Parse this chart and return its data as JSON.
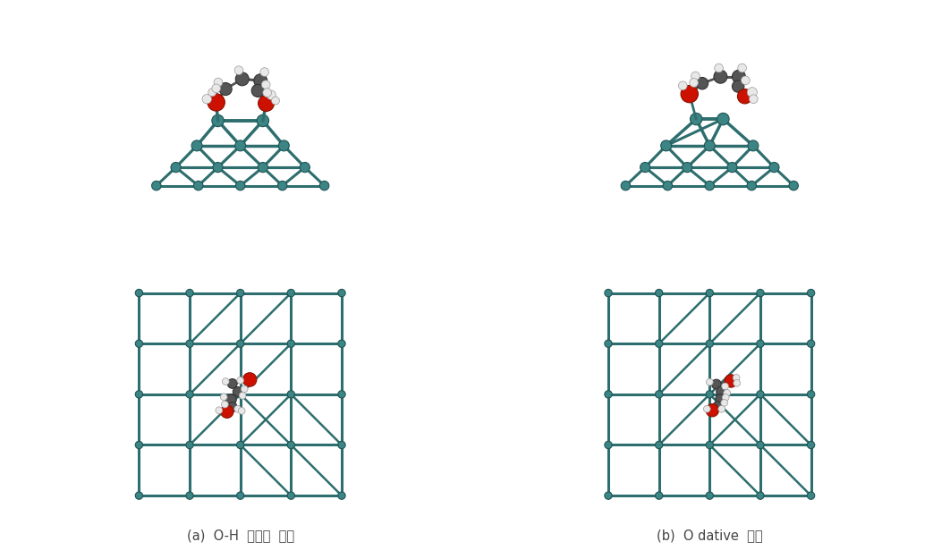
{
  "background_color": "#ffffff",
  "label_a": "(a)  O-H  해리성  흡착",
  "label_b": "(b)  O dative  결합",
  "label_fontsize": 10.5,
  "label_color": "#444444",
  "teal_color": "#3d8585",
  "teal_bond_color": "#2e6e6e",
  "teal_dark": "#1e5555",
  "red_color": "#cc1100",
  "gray_color": "#777777",
  "white_atom_color": "#e8e8e8",
  "dark_gray_color": "#555555",
  "fig_width": 10.62,
  "fig_height": 6.25
}
